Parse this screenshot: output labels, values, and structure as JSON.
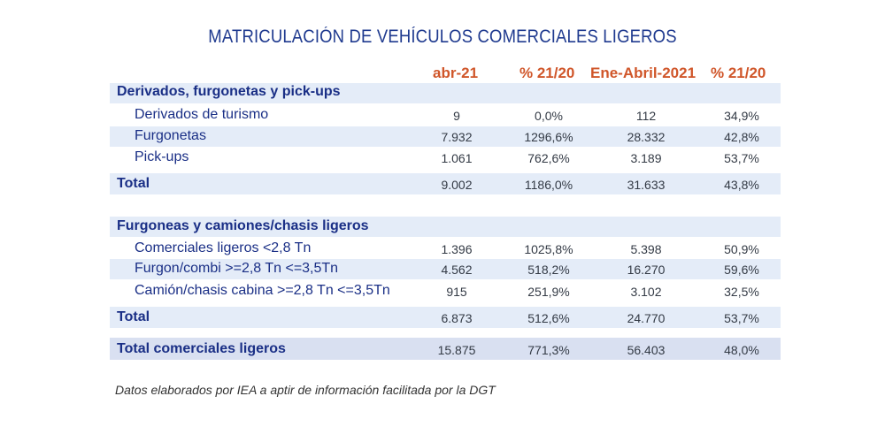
{
  "title": "MATRICULACIÓN DE VEHÍCULOS COMERCIALES LIGEROS",
  "headers": [
    "abr-21",
    "% 21/20",
    "Ene-Abril-2021",
    "% 21/20"
  ],
  "section1": {
    "title": "Derivados, furgonetas y pick-ups",
    "rows": [
      {
        "label": "Derivados de turismo",
        "v": [
          "9",
          "0,0%",
          "112",
          "34,9%"
        ]
      },
      {
        "label": "Furgonetas",
        "v": [
          "7.932",
          "1296,6%",
          "28.332",
          "42,8%"
        ]
      },
      {
        "label": "Pick-ups",
        "v": [
          "1.061",
          "762,6%",
          "3.189",
          "53,7%"
        ]
      }
    ],
    "total": {
      "label": "Total",
      "v": [
        "9.002",
        "1186,0%",
        "31.633",
        "43,8%"
      ]
    }
  },
  "section2": {
    "title": "Furgoneas y camiones/chasis ligeros",
    "rows": [
      {
        "label": "Comerciales ligeros <2,8 Tn",
        "v": [
          "1.396",
          "1025,8%",
          "5.398",
          "50,9%"
        ]
      },
      {
        "label": "Furgon/combi >=2,8 Tn <=3,5Tn",
        "v": [
          "4.562",
          "518,2%",
          "16.270",
          "59,6%"
        ]
      },
      {
        "label": "Camión/chasis cabina >=2,8 Tn <=3,5Tn",
        "v": [
          "915",
          "251,9%",
          "3.102",
          "32,5%"
        ]
      }
    ],
    "total": {
      "label": "Total",
      "v": [
        "6.873",
        "512,6%",
        "24.770",
        "53,7%"
      ]
    }
  },
  "grand_total": {
    "label": "Total comerciales ligeros",
    "v": [
      "15.875",
      "771,3%",
      "56.403",
      "48,0%"
    ]
  },
  "footer": "Datos elaborados por  IEA a aptir de información facilitada por la DGT",
  "colors": {
    "title": "#1f3a8f",
    "header": "#d0562a",
    "band_light": "#e4ecf8",
    "band_total": "#d9e0f1"
  }
}
